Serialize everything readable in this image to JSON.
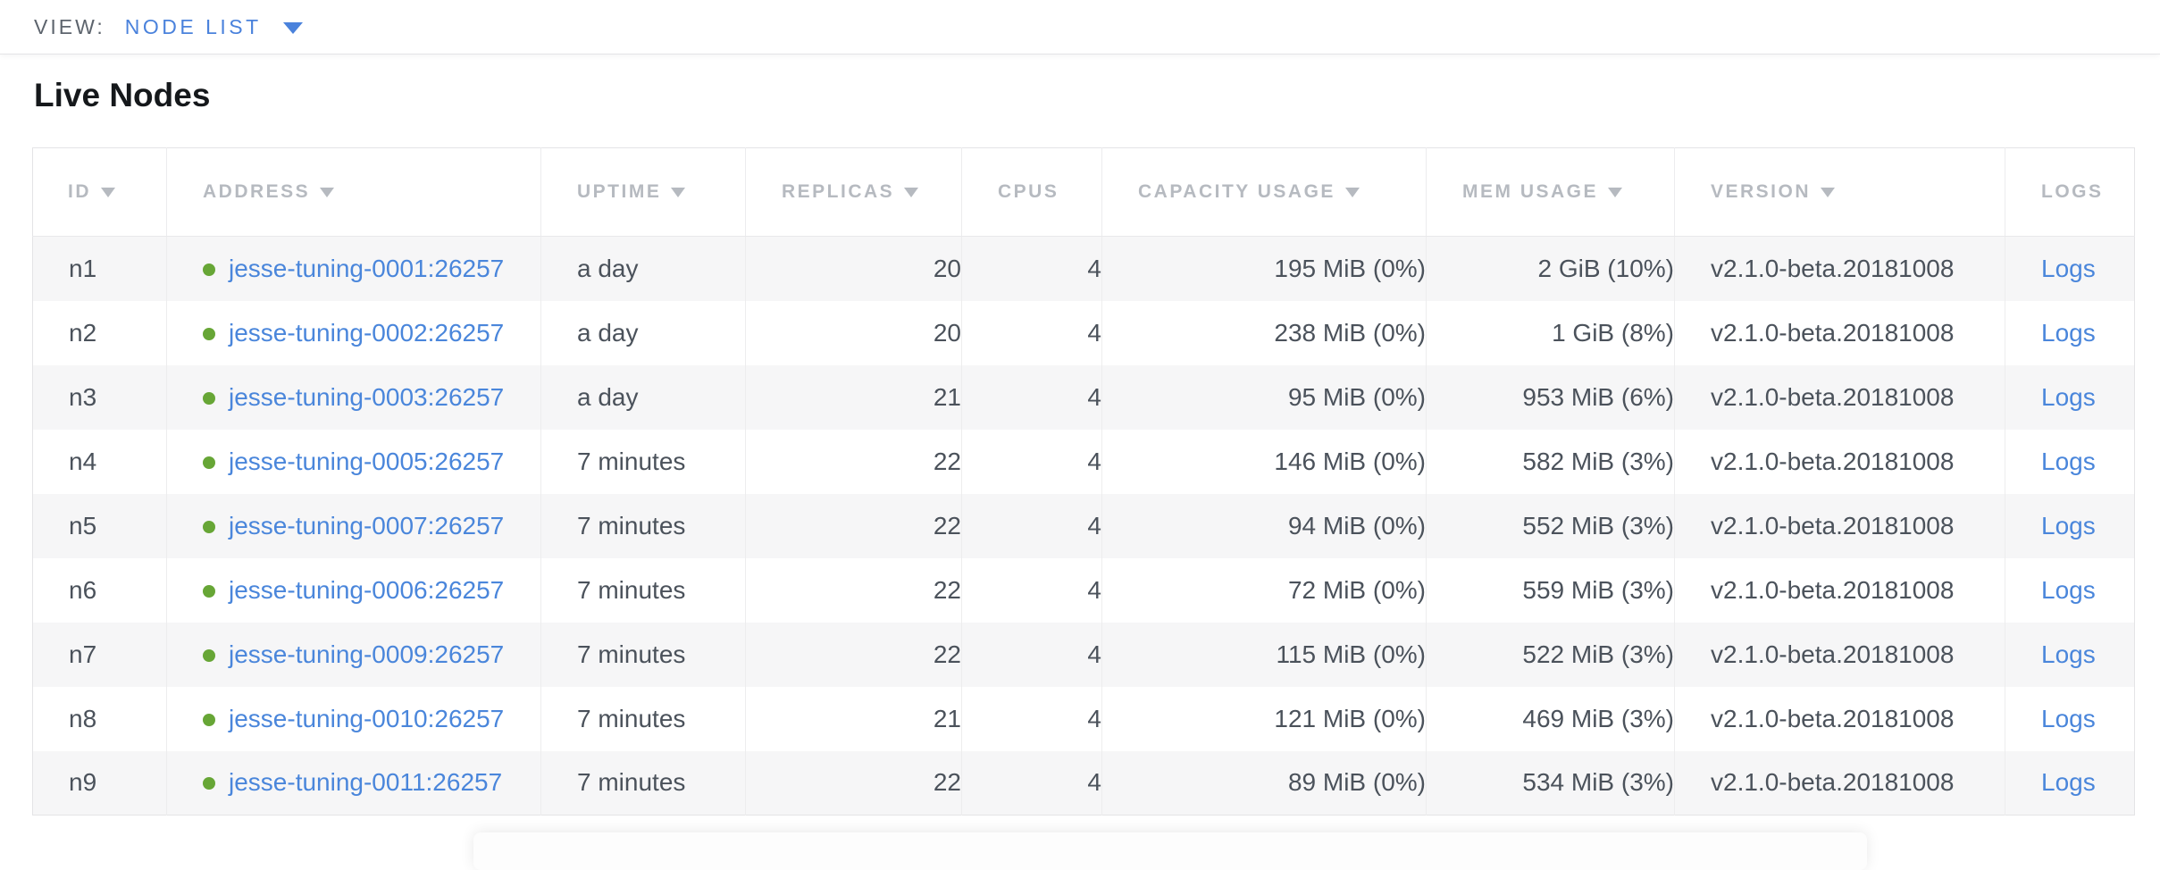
{
  "view_bar": {
    "label": "VIEW:",
    "selected": "NODE LIST"
  },
  "section": {
    "title": "Live Nodes"
  },
  "table": {
    "columns": [
      {
        "label": "ID",
        "sortable": true
      },
      {
        "label": "ADDRESS",
        "sortable": true
      },
      {
        "label": "UPTIME",
        "sortable": true
      },
      {
        "label": "REPLICAS",
        "sortable": true
      },
      {
        "label": "CPUS",
        "sortable": false
      },
      {
        "label": "CAPACITY USAGE",
        "sortable": true
      },
      {
        "label": "MEM USAGE",
        "sortable": true
      },
      {
        "label": "VERSION",
        "sortable": true
      },
      {
        "label": "LOGS",
        "sortable": false
      }
    ],
    "rows": [
      {
        "id": "n1",
        "status": "live",
        "address": "jesse-tuning-0001:26257",
        "uptime": "a day",
        "replicas": "20",
        "cpus": "4",
        "capacity_usage": "195 MiB (0%)",
        "mem_usage": "2 GiB (10%)",
        "version": "v2.1.0-beta.20181008",
        "logs_label": "Logs"
      },
      {
        "id": "n2",
        "status": "live",
        "address": "jesse-tuning-0002:26257",
        "uptime": "a day",
        "replicas": "20",
        "cpus": "4",
        "capacity_usage": "238 MiB (0%)",
        "mem_usage": "1 GiB (8%)",
        "version": "v2.1.0-beta.20181008",
        "logs_label": "Logs"
      },
      {
        "id": "n3",
        "status": "live",
        "address": "jesse-tuning-0003:26257",
        "uptime": "a day",
        "replicas": "21",
        "cpus": "4",
        "capacity_usage": "95 MiB (0%)",
        "mem_usage": "953 MiB (6%)",
        "version": "v2.1.0-beta.20181008",
        "logs_label": "Logs"
      },
      {
        "id": "n4",
        "status": "live",
        "address": "jesse-tuning-0005:26257",
        "uptime": "7 minutes",
        "replicas": "22",
        "cpus": "4",
        "capacity_usage": "146 MiB (0%)",
        "mem_usage": "582 MiB (3%)",
        "version": "v2.1.0-beta.20181008",
        "logs_label": "Logs"
      },
      {
        "id": "n5",
        "status": "live",
        "address": "jesse-tuning-0007:26257",
        "uptime": "7 minutes",
        "replicas": "22",
        "cpus": "4",
        "capacity_usage": "94 MiB (0%)",
        "mem_usage": "552 MiB (3%)",
        "version": "v2.1.0-beta.20181008",
        "logs_label": "Logs"
      },
      {
        "id": "n6",
        "status": "live",
        "address": "jesse-tuning-0006:26257",
        "uptime": "7 minutes",
        "replicas": "22",
        "cpus": "4",
        "capacity_usage": "72 MiB (0%)",
        "mem_usage": "559 MiB (3%)",
        "version": "v2.1.0-beta.20181008",
        "logs_label": "Logs"
      },
      {
        "id": "n7",
        "status": "live",
        "address": "jesse-tuning-0009:26257",
        "uptime": "7 minutes",
        "replicas": "22",
        "cpus": "4",
        "capacity_usage": "115 MiB (0%)",
        "mem_usage": "522 MiB (3%)",
        "version": "v2.1.0-beta.20181008",
        "logs_label": "Logs"
      },
      {
        "id": "n8",
        "status": "live",
        "address": "jesse-tuning-0010:26257",
        "uptime": "7 minutes",
        "replicas": "21",
        "cpus": "4",
        "capacity_usage": "121 MiB (0%)",
        "mem_usage": "469 MiB (3%)",
        "version": "v2.1.0-beta.20181008",
        "logs_label": "Logs"
      },
      {
        "id": "n9",
        "status": "live",
        "address": "jesse-tuning-0011:26257",
        "uptime": "7 minutes",
        "replicas": "22",
        "cpus": "4",
        "capacity_usage": "89 MiB (0%)",
        "mem_usage": "534 MiB (3%)",
        "version": "v2.1.0-beta.20181008",
        "logs_label": "Logs"
      }
    ]
  },
  "colors": {
    "link_blue": "#4a86db",
    "selector_blue": "#4a82dc",
    "live_dot_green": "#67a636",
    "header_text_gray": "#b6bac0",
    "body_text": "#4b525b",
    "row_alt_bg": "#f6f6f7"
  }
}
